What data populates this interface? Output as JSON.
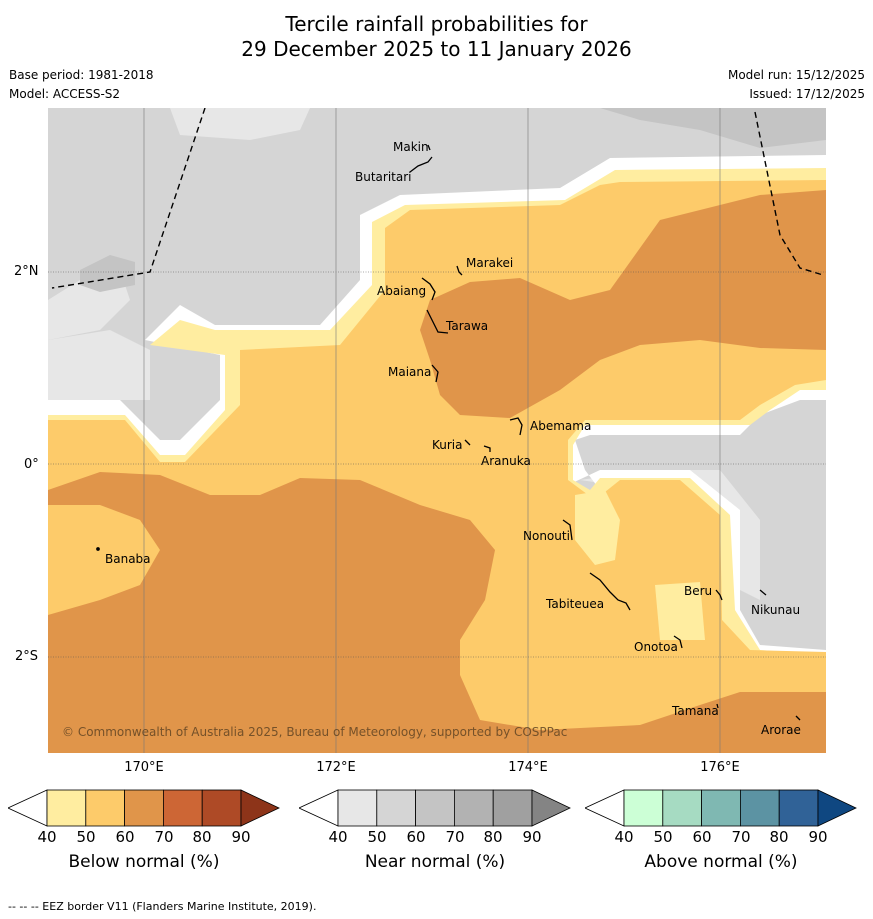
{
  "title": {
    "line1": "Tercile rainfall probabilities for",
    "line2": "29 December 2025 to 11 January 2026"
  },
  "meta": {
    "base_period": "Base period: 1981-2018",
    "model": "Model: ACCESS-S2",
    "model_run": "Model run: 15/12/2025",
    "issued": "Issued: 17/12/2025"
  },
  "map": {
    "lat_labels": [
      "2°N",
      "0°",
      "2°S"
    ],
    "lon_labels": [
      "170°E",
      "172°E",
      "174°E",
      "176°E"
    ],
    "islands": [
      "Makin",
      "Butaritari",
      "Marakei",
      "Abaiang",
      "Tarawa",
      "Maiana",
      "Abemama",
      "Kuria",
      "Aranuka",
      "Nonouti",
      "Banaba",
      "Tabiteuea",
      "Beru",
      "Nikunau",
      "Onotoa",
      "Tamana",
      "Arorae"
    ],
    "copyright": "© Commonwealth of Australia 2025, Bureau of Meteorology, supported by COSPPac"
  },
  "colorbars": [
    {
      "label": "Below normal (%)",
      "ticks": [
        "40",
        "50",
        "60",
        "70",
        "80",
        "90"
      ],
      "colors": [
        "#ffffff",
        "#ffeda0",
        "#fdcb6a",
        "#e0954a",
        "#cd6635",
        "#ae4a26",
        "#8d3419"
      ]
    },
    {
      "label": "Near normal (%)",
      "ticks": [
        "40",
        "50",
        "60",
        "70",
        "80",
        "90"
      ],
      "colors": [
        "#ffffff",
        "#e7e7e7",
        "#d5d5d5",
        "#c4c4c4",
        "#b2b2b2",
        "#a0a0a0",
        "#848484"
      ]
    },
    {
      "label": "Above normal (%)",
      "ticks": [
        "40",
        "50",
        "60",
        "70",
        "80",
        "90"
      ],
      "colors": [
        "#ffffff",
        "#ccffd6",
        "#a6dbc2",
        "#7fb8b2",
        "#5c93a3",
        "#306297",
        "#0f4781"
      ]
    }
  ],
  "footer": "--  --  -- EEZ border V11 (Flanders Marine Institute, 2019)."
}
